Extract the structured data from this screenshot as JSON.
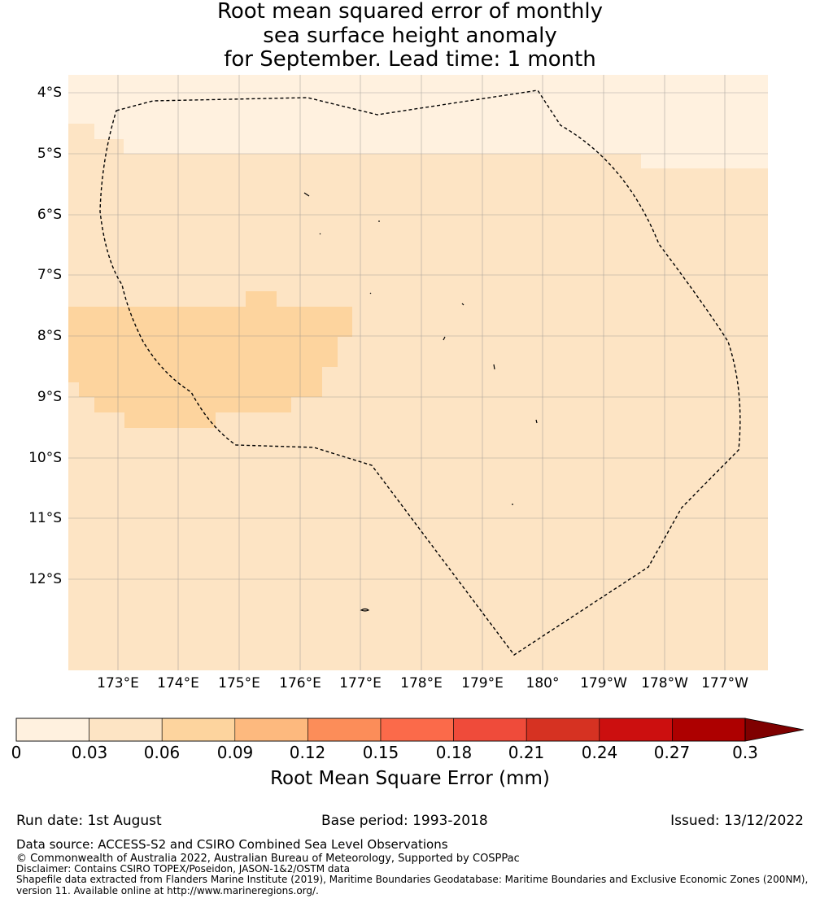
{
  "title": {
    "line1": "Root mean squared error of monthly",
    "line2": "sea surface height anomaly",
    "line3": "for September. Lead time: 1 month"
  },
  "map": {
    "lat_labels": [
      "4°S",
      "5°S",
      "6°S",
      "7°S",
      "8°S",
      "9°S",
      "10°S",
      "11°S",
      "12°S"
    ],
    "lon_labels": [
      "173°E",
      "174°E",
      "175°E",
      "176°E",
      "177°E",
      "178°E",
      "179°E",
      "180°",
      "179°W",
      "178°W",
      "177°W"
    ],
    "boundary_style": "dashed",
    "grid": true,
    "colors": {
      "bin_0_003": "#fff1df",
      "bin_003_006": "#fde4c4",
      "bin_006_009": "#fdd49e",
      "grid": "#888888",
      "boundary": "#000000"
    }
  },
  "colorbar": {
    "ticks": [
      "0",
      "0.03",
      "0.06",
      "0.09",
      "0.12",
      "0.15",
      "0.18",
      "0.21",
      "0.24",
      "0.27",
      "0.3"
    ],
    "colors": [
      "#fff1df",
      "#fde4c4",
      "#fdd49e",
      "#fdb97e",
      "#fc8d59",
      "#fb6a4a",
      "#ef4b3a",
      "#d63222",
      "#cc0f0f",
      "#ad0000"
    ],
    "extend_color": "#7f0000",
    "label": "Root Mean Square Error (mm)"
  },
  "footer": {
    "run_date": "Run date: 1st August",
    "base_period": "Base period: 1993-2018",
    "issued": "Issued: 13/12/2022",
    "data_source": "Data source: ACCESS-S2 and CSIRO Combined Sea Level Observations",
    "copyright": "© Commonwealth of Australia 2022, Australian Bureau of Meteorology, Supported by COSPPac",
    "disclaimer": "Disclaimer: Contains CSIRO TOPEX/Poseidon, JASON-1&2/OSTM data",
    "shapefile_line1": "Shapefile data extracted from Flanders Marine Institute (2019), Maritime Boundaries Geodatabase: Maritime Boundaries and Exclusive Economic Zones (200NM),",
    "shapefile_line2": "version 11. Available online at http://www.marineregions.org/."
  }
}
